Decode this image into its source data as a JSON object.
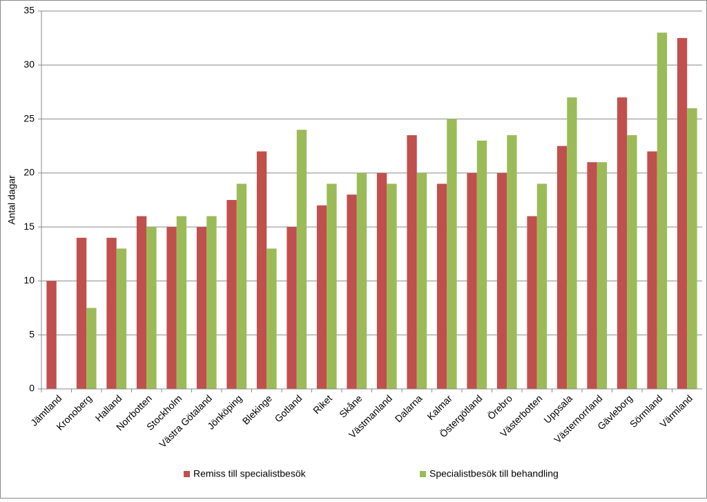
{
  "chart_data": {
    "type": "bar",
    "y_label": "Antal dagar",
    "categories": [
      "Jämtland",
      "Kronoberg",
      "Halland",
      "Norrbotten",
      "Stockholm",
      "Västra Götaland",
      "Jönköping",
      "Blekinge",
      "Gotland",
      "Riket",
      "Skåne",
      "Västmanland",
      "Dalarna",
      "Kalmar",
      "Östergötland",
      "Örebro",
      "Västerbotten",
      "Uppsala",
      "Västernorrland",
      "Gävleborg",
      "Sörmland",
      "Värmland"
    ],
    "series": [
      {
        "name": "Remiss till specialistbesök",
        "color": "#c0504d",
        "values": [
          10,
          14,
          14,
          16,
          15,
          15,
          17.5,
          22,
          15,
          17,
          18,
          20,
          23.5,
          19,
          20,
          20,
          16,
          22.5,
          21,
          27,
          22,
          32.5
        ]
      },
      {
        "name": "Specialistbesök till behandling",
        "color": "#9bbb59",
        "values": [
          null,
          7.5,
          13,
          15,
          16,
          16,
          19,
          13,
          24,
          19,
          20,
          19,
          20,
          25,
          23,
          23.5,
          19,
          27,
          21,
          23.5,
          33,
          26
        ]
      }
    ],
    "ylim": [
      0,
      35
    ],
    "yticks": [
      0,
      5,
      10,
      15,
      20,
      25,
      30,
      35
    ],
    "grid": true
  }
}
